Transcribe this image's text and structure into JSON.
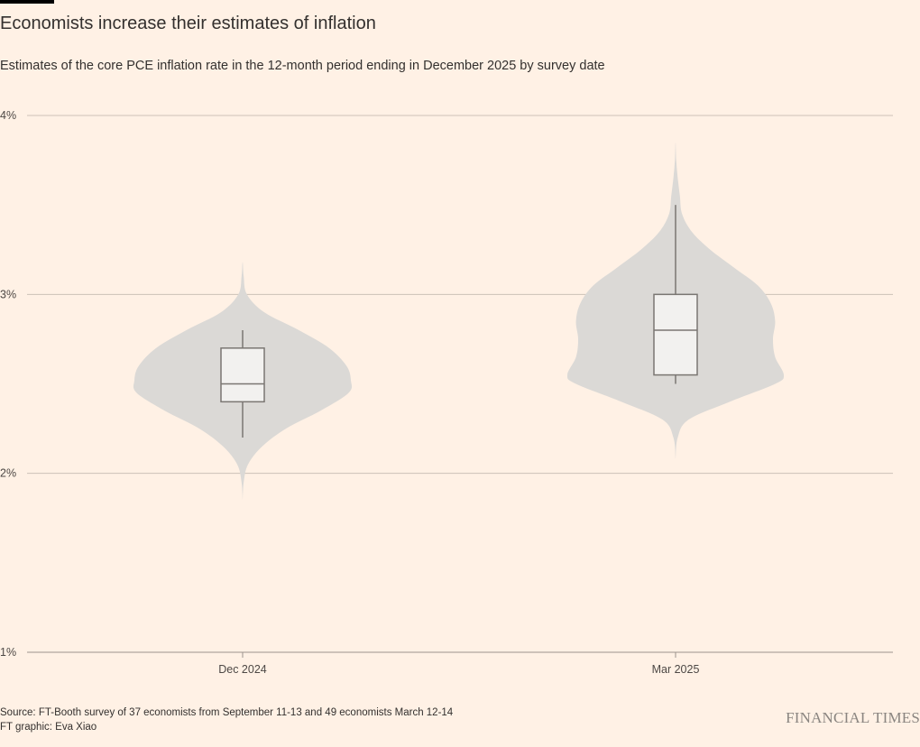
{
  "header": {
    "title": "Economists increase their estimates of inflation",
    "subtitle": "Estimates of the core PCE inflation rate in the 12-month period ending in December 2025 by survey date"
  },
  "footer": {
    "source": "Source: FT-Booth survey of 37 economists from September 11-13 and 49 economists March 12-14",
    "credit": "FT graphic: Eva Xiao",
    "logo": "FINANCIAL TIMES"
  },
  "colors": {
    "background": "#fff1e5",
    "violin": "#dbd9d6",
    "box_fill": "#f2f1ef",
    "box_stroke": "#7a7672",
    "grid": "#ccc1b7",
    "axis": "#9b948d"
  },
  "chart_data": {
    "type": "violin",
    "title": "Economists increase their estimates of inflation",
    "subtitle": "Estimates of the core PCE inflation rate in the 12-month period ending in December 2025 by survey date",
    "xlabel": "",
    "ylabel": "",
    "ylim": [
      1,
      4
    ],
    "yticks": [
      1,
      2,
      3,
      4
    ],
    "ytick_labels": [
      "1%",
      "2%",
      "3%",
      "4%"
    ],
    "grid": true,
    "categories": [
      "Dec 2024",
      "Mar 2025"
    ],
    "series": [
      {
        "category": "Dec 2024",
        "box": {
          "whisker_low": 2.2,
          "q1": 2.4,
          "median": 2.5,
          "q3": 2.7,
          "whisker_high": 2.8
        },
        "density": [
          [
            1.85,
            0.0
          ],
          [
            1.95,
            0.01
          ],
          [
            2.05,
            0.05
          ],
          [
            2.15,
            0.18
          ],
          [
            2.25,
            0.4
          ],
          [
            2.35,
            0.72
          ],
          [
            2.45,
            0.98
          ],
          [
            2.52,
            1.0
          ],
          [
            2.6,
            0.96
          ],
          [
            2.7,
            0.8
          ],
          [
            2.8,
            0.52
          ],
          [
            2.9,
            0.2
          ],
          [
            3.0,
            0.04
          ],
          [
            3.1,
            0.01
          ],
          [
            3.18,
            0.0
          ]
        ]
      },
      {
        "category": "Mar 2025",
        "box": {
          "whisker_low": 2.5,
          "q1": 2.55,
          "median": 2.8,
          "q3": 3.0,
          "whisker_high": 3.5
        },
        "density": [
          [
            2.08,
            0.0
          ],
          [
            2.2,
            0.02
          ],
          [
            2.3,
            0.12
          ],
          [
            2.4,
            0.5
          ],
          [
            2.5,
            0.92
          ],
          [
            2.55,
            1.0
          ],
          [
            2.65,
            0.92
          ],
          [
            2.75,
            0.9
          ],
          [
            2.85,
            0.92
          ],
          [
            2.95,
            0.88
          ],
          [
            3.05,
            0.76
          ],
          [
            3.15,
            0.54
          ],
          [
            3.25,
            0.32
          ],
          [
            3.35,
            0.15
          ],
          [
            3.45,
            0.06
          ],
          [
            3.55,
            0.04
          ],
          [
            3.65,
            0.02
          ],
          [
            3.75,
            0.006
          ],
          [
            3.85,
            0.0
          ]
        ]
      }
    ]
  }
}
